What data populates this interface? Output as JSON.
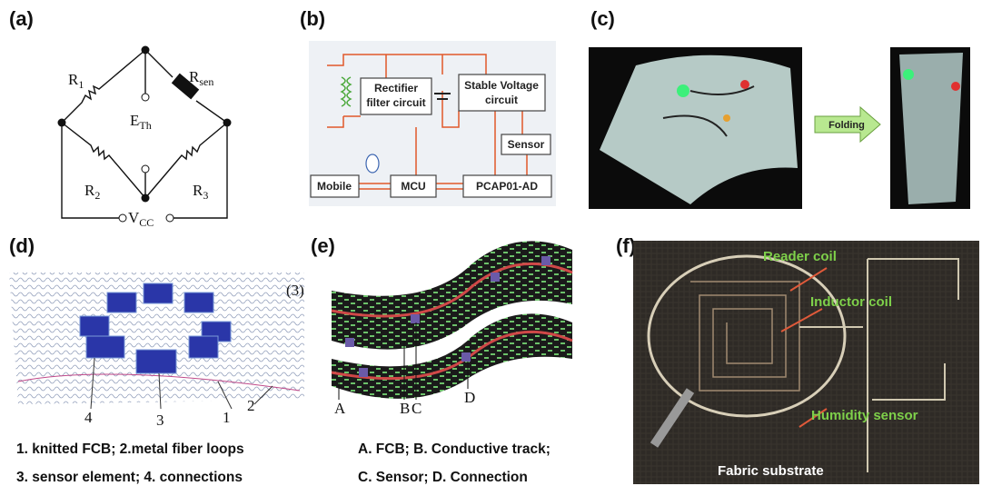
{
  "panels": {
    "a": {
      "label": "(a)",
      "components": [
        {
          "base": "R",
          "sub": "1"
        },
        {
          "base": "R",
          "sub": "sen"
        },
        {
          "base": "E",
          "sub": "Th"
        },
        {
          "base": "R",
          "sub": "2"
        },
        {
          "base": "R",
          "sub": "3"
        },
        {
          "base": "V",
          "sub": "CC"
        }
      ]
    },
    "b": {
      "label": "(b)",
      "blocks": [
        "Rectifier",
        "filter circuit",
        "Stable Voltage",
        "circuit",
        "Sensor",
        "Mobile",
        "MCU",
        "PCAP01-AD"
      ]
    },
    "c": {
      "label": "(c)",
      "arrow": "Folding"
    },
    "d": {
      "label": "(d)",
      "inset": "(3)",
      "callouts": [
        "4",
        "3",
        "1",
        "2"
      ],
      "caption": [
        "1. knitted FCB; 2.metal fiber loops",
        "3. sensor element; 4. connections"
      ]
    },
    "e": {
      "label": "(e)",
      "callouts": [
        "A",
        "B",
        "C",
        "D"
      ],
      "caption": [
        "A. FCB; B. Conductive track;",
        "C. Sensor; D. Connection"
      ]
    },
    "f": {
      "label": "(f)",
      "annotations": [
        "Reader coil",
        "Inductor coil",
        "Humidity sensor"
      ],
      "substrate": "Fabric substrate"
    }
  }
}
